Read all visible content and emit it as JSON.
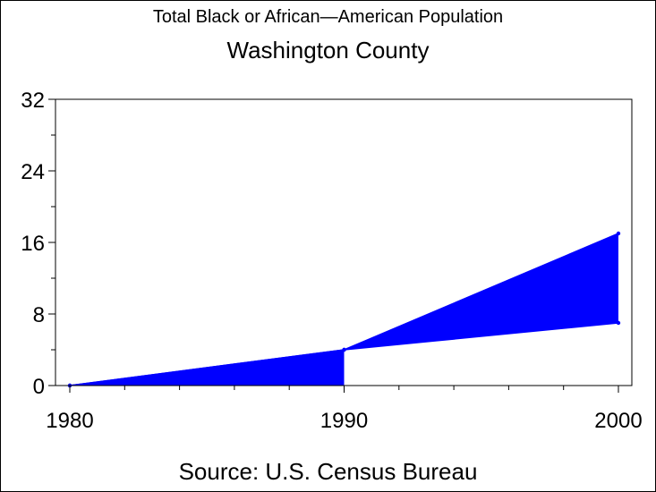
{
  "title": "Total Black or African—American Population",
  "subtitle": "Washington County",
  "footnote": "Source: U.S. Census Bureau",
  "colors": {
    "fill": "#0000ff",
    "axis": "#000000"
  },
  "chart_data": {
    "type": "area",
    "title": "Total Black or African—American Population",
    "subtitle": "Washington County",
    "x": [
      1980,
      1990,
      2000
    ],
    "x_tick_labels": [
      "1980",
      "1990",
      "2000"
    ],
    "y_tick_labels": [
      "0",
      "8",
      "16",
      "24",
      "32"
    ],
    "ylim": [
      0,
      32
    ],
    "xlim": [
      1980,
      2000
    ],
    "series": [
      {
        "values": [
          0,
          4,
          17
        ]
      },
      {
        "values": [
          0,
          4,
          7
        ]
      }
    ],
    "xlabel": "",
    "ylabel": "",
    "grid": false,
    "footnote": "Source: U.S. Census Bureau"
  }
}
